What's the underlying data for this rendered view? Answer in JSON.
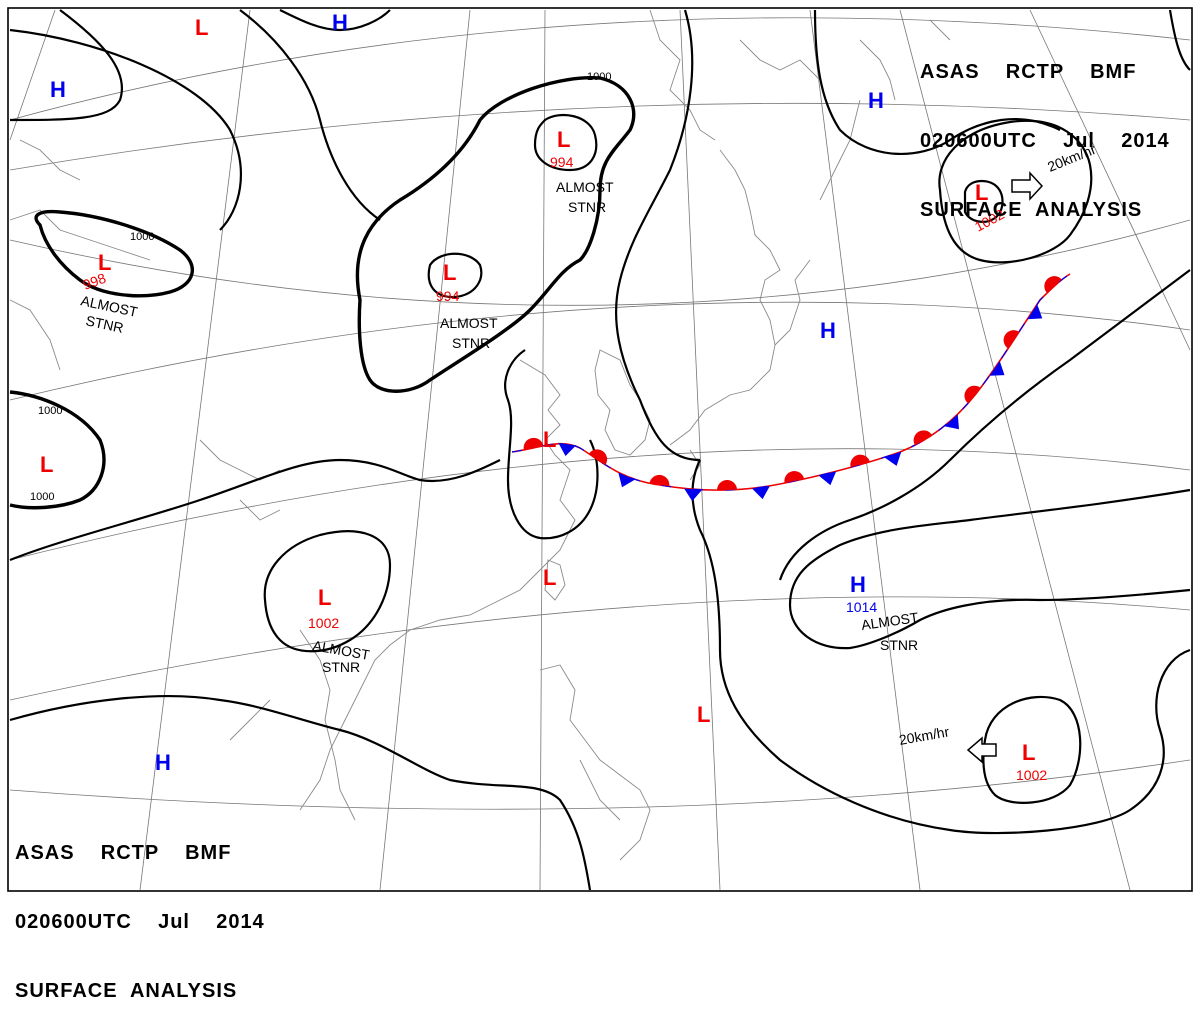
{
  "header": {
    "line1": "ASAS    RCTP    BMF",
    "line2": "020600UTC    Jul    2014",
    "line3": "SURFACE  ANALYSIS"
  },
  "isobar_labels": [
    "1000",
    "1000",
    "1000",
    "1000"
  ],
  "pressure_systems": [
    {
      "type": "L",
      "pressure": "994",
      "note": "ALMOST STNR"
    },
    {
      "type": "L",
      "pressure": "994",
      "note": "ALMOST STNR"
    },
    {
      "type": "L",
      "pressure": "998",
      "note": "ALMOST STNR"
    },
    {
      "type": "L",
      "pressure": "1002",
      "note": "ALMOST STNR"
    },
    {
      "type": "L",
      "pressure": "1002",
      "note": ""
    },
    {
      "type": "L",
      "pressure": "1002",
      "note": ""
    },
    {
      "type": "H",
      "pressure": "1014",
      "note": "ALMOST STNR"
    },
    {
      "type": "L",
      "pressure": "",
      "note": ""
    },
    {
      "type": "H",
      "pressure": "",
      "note": ""
    }
  ],
  "notes": {
    "almost": "ALMOST",
    "stnr": "STNR"
  },
  "motion": {
    "ne_low": "20km/hr",
    "se_low": "20km/hr"
  },
  "symbols": {
    "low": "L",
    "high": "H"
  },
  "colors": {
    "low": "#ee0000",
    "high": "#0000ee",
    "warm_front": "#ee0000",
    "cold_front": "#0000ee",
    "isobar": "#000000",
    "coastline": "#8a8a8a",
    "grid": "#777777"
  },
  "front": {
    "type": "stationary"
  }
}
